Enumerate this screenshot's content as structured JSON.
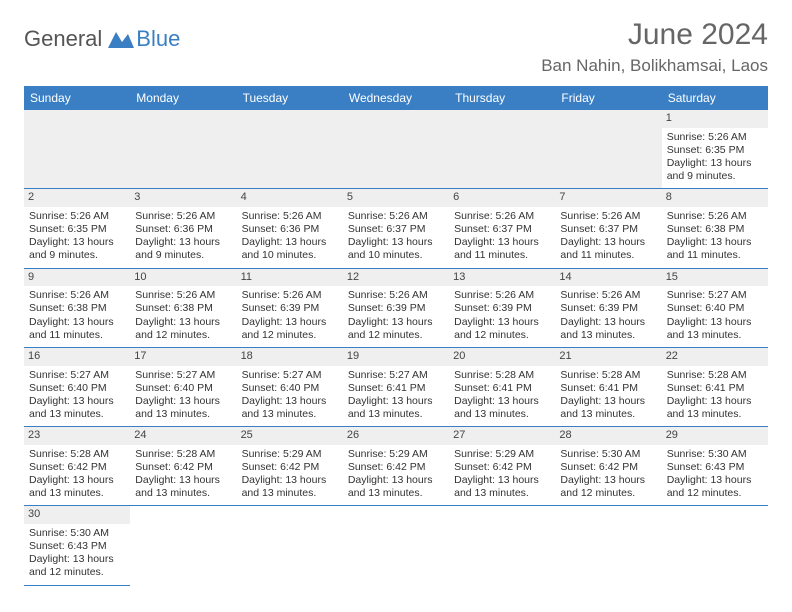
{
  "logo": {
    "general": "General",
    "blue": "Blue"
  },
  "header": {
    "month_title": "June 2024",
    "location": "Ban Nahin, Bolikhamsai, Laos"
  },
  "colors": {
    "header_bg": "#3a7fc4",
    "header_text": "#ffffff",
    "daynum_bg": "#efefef",
    "border": "#3a7fc4",
    "text": "#333333"
  },
  "weekdays": [
    "Sunday",
    "Monday",
    "Tuesday",
    "Wednesday",
    "Thursday",
    "Friday",
    "Saturday"
  ],
  "weeks": [
    [
      null,
      null,
      null,
      null,
      null,
      null,
      {
        "n": "1",
        "sr": "5:26 AM",
        "ss": "6:35 PM",
        "dl": "13 hours and 9 minutes."
      }
    ],
    [
      {
        "n": "2",
        "sr": "5:26 AM",
        "ss": "6:35 PM",
        "dl": "13 hours and 9 minutes."
      },
      {
        "n": "3",
        "sr": "5:26 AM",
        "ss": "6:36 PM",
        "dl": "13 hours and 9 minutes."
      },
      {
        "n": "4",
        "sr": "5:26 AM",
        "ss": "6:36 PM",
        "dl": "13 hours and 10 minutes."
      },
      {
        "n": "5",
        "sr": "5:26 AM",
        "ss": "6:37 PM",
        "dl": "13 hours and 10 minutes."
      },
      {
        "n": "6",
        "sr": "5:26 AM",
        "ss": "6:37 PM",
        "dl": "13 hours and 11 minutes."
      },
      {
        "n": "7",
        "sr": "5:26 AM",
        "ss": "6:37 PM",
        "dl": "13 hours and 11 minutes."
      },
      {
        "n": "8",
        "sr": "5:26 AM",
        "ss": "6:38 PM",
        "dl": "13 hours and 11 minutes."
      }
    ],
    [
      {
        "n": "9",
        "sr": "5:26 AM",
        "ss": "6:38 PM",
        "dl": "13 hours and 11 minutes."
      },
      {
        "n": "10",
        "sr": "5:26 AM",
        "ss": "6:38 PM",
        "dl": "13 hours and 12 minutes."
      },
      {
        "n": "11",
        "sr": "5:26 AM",
        "ss": "6:39 PM",
        "dl": "13 hours and 12 minutes."
      },
      {
        "n": "12",
        "sr": "5:26 AM",
        "ss": "6:39 PM",
        "dl": "13 hours and 12 minutes."
      },
      {
        "n": "13",
        "sr": "5:26 AM",
        "ss": "6:39 PM",
        "dl": "13 hours and 12 minutes."
      },
      {
        "n": "14",
        "sr": "5:26 AM",
        "ss": "6:39 PM",
        "dl": "13 hours and 13 minutes."
      },
      {
        "n": "15",
        "sr": "5:27 AM",
        "ss": "6:40 PM",
        "dl": "13 hours and 13 minutes."
      }
    ],
    [
      {
        "n": "16",
        "sr": "5:27 AM",
        "ss": "6:40 PM",
        "dl": "13 hours and 13 minutes."
      },
      {
        "n": "17",
        "sr": "5:27 AM",
        "ss": "6:40 PM",
        "dl": "13 hours and 13 minutes."
      },
      {
        "n": "18",
        "sr": "5:27 AM",
        "ss": "6:40 PM",
        "dl": "13 hours and 13 minutes."
      },
      {
        "n": "19",
        "sr": "5:27 AM",
        "ss": "6:41 PM",
        "dl": "13 hours and 13 minutes."
      },
      {
        "n": "20",
        "sr": "5:28 AM",
        "ss": "6:41 PM",
        "dl": "13 hours and 13 minutes."
      },
      {
        "n": "21",
        "sr": "5:28 AM",
        "ss": "6:41 PM",
        "dl": "13 hours and 13 minutes."
      },
      {
        "n": "22",
        "sr": "5:28 AM",
        "ss": "6:41 PM",
        "dl": "13 hours and 13 minutes."
      }
    ],
    [
      {
        "n": "23",
        "sr": "5:28 AM",
        "ss": "6:42 PM",
        "dl": "13 hours and 13 minutes."
      },
      {
        "n": "24",
        "sr": "5:28 AM",
        "ss": "6:42 PM",
        "dl": "13 hours and 13 minutes."
      },
      {
        "n": "25",
        "sr": "5:29 AM",
        "ss": "6:42 PM",
        "dl": "13 hours and 13 minutes."
      },
      {
        "n": "26",
        "sr": "5:29 AM",
        "ss": "6:42 PM",
        "dl": "13 hours and 13 minutes."
      },
      {
        "n": "27",
        "sr": "5:29 AM",
        "ss": "6:42 PM",
        "dl": "13 hours and 13 minutes."
      },
      {
        "n": "28",
        "sr": "5:30 AM",
        "ss": "6:42 PM",
        "dl": "13 hours and 12 minutes."
      },
      {
        "n": "29",
        "sr": "5:30 AM",
        "ss": "6:43 PM",
        "dl": "13 hours and 12 minutes."
      }
    ],
    [
      {
        "n": "30",
        "sr": "5:30 AM",
        "ss": "6:43 PM",
        "dl": "13 hours and 12 minutes."
      },
      null,
      null,
      null,
      null,
      null,
      null
    ]
  ],
  "labels": {
    "sunrise": "Sunrise:",
    "sunset": "Sunset:",
    "daylight": "Daylight:"
  }
}
